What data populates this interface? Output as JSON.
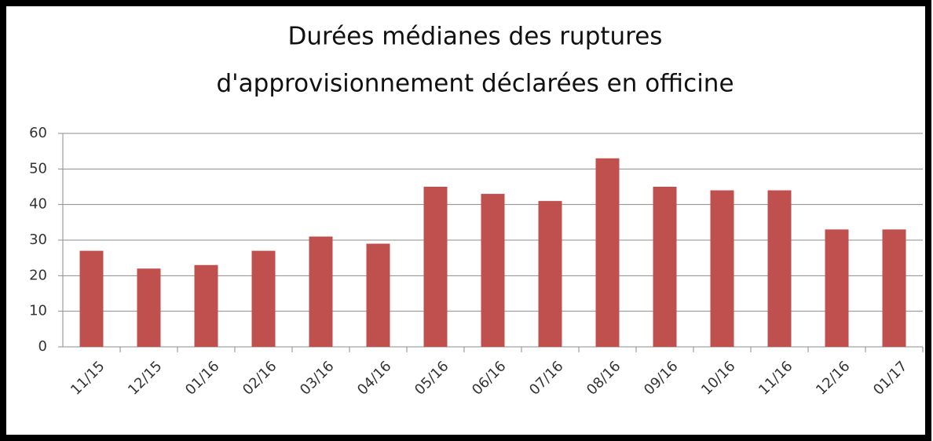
{
  "chart_data": {
    "type": "bar",
    "title": [
      "Durées médianes des ruptures",
      "d'approvisionnement  déclarées en officine"
    ],
    "categories": [
      "11/15",
      "12/15",
      "01/16",
      "02/16",
      "03/16",
      "04/16",
      "05/16",
      "06/16",
      "07/16",
      "08/16",
      "09/16",
      "10/16",
      "11/16",
      "12/16",
      "01/17"
    ],
    "values": [
      27,
      22,
      23,
      27,
      31,
      29,
      45,
      43,
      41,
      53,
      45,
      44,
      44,
      33,
      33
    ],
    "color": "#c0504d",
    "ylim": [
      0,
      60
    ],
    "yticks": [
      0,
      10,
      20,
      30,
      40,
      50,
      60
    ],
    "grid": true
  }
}
